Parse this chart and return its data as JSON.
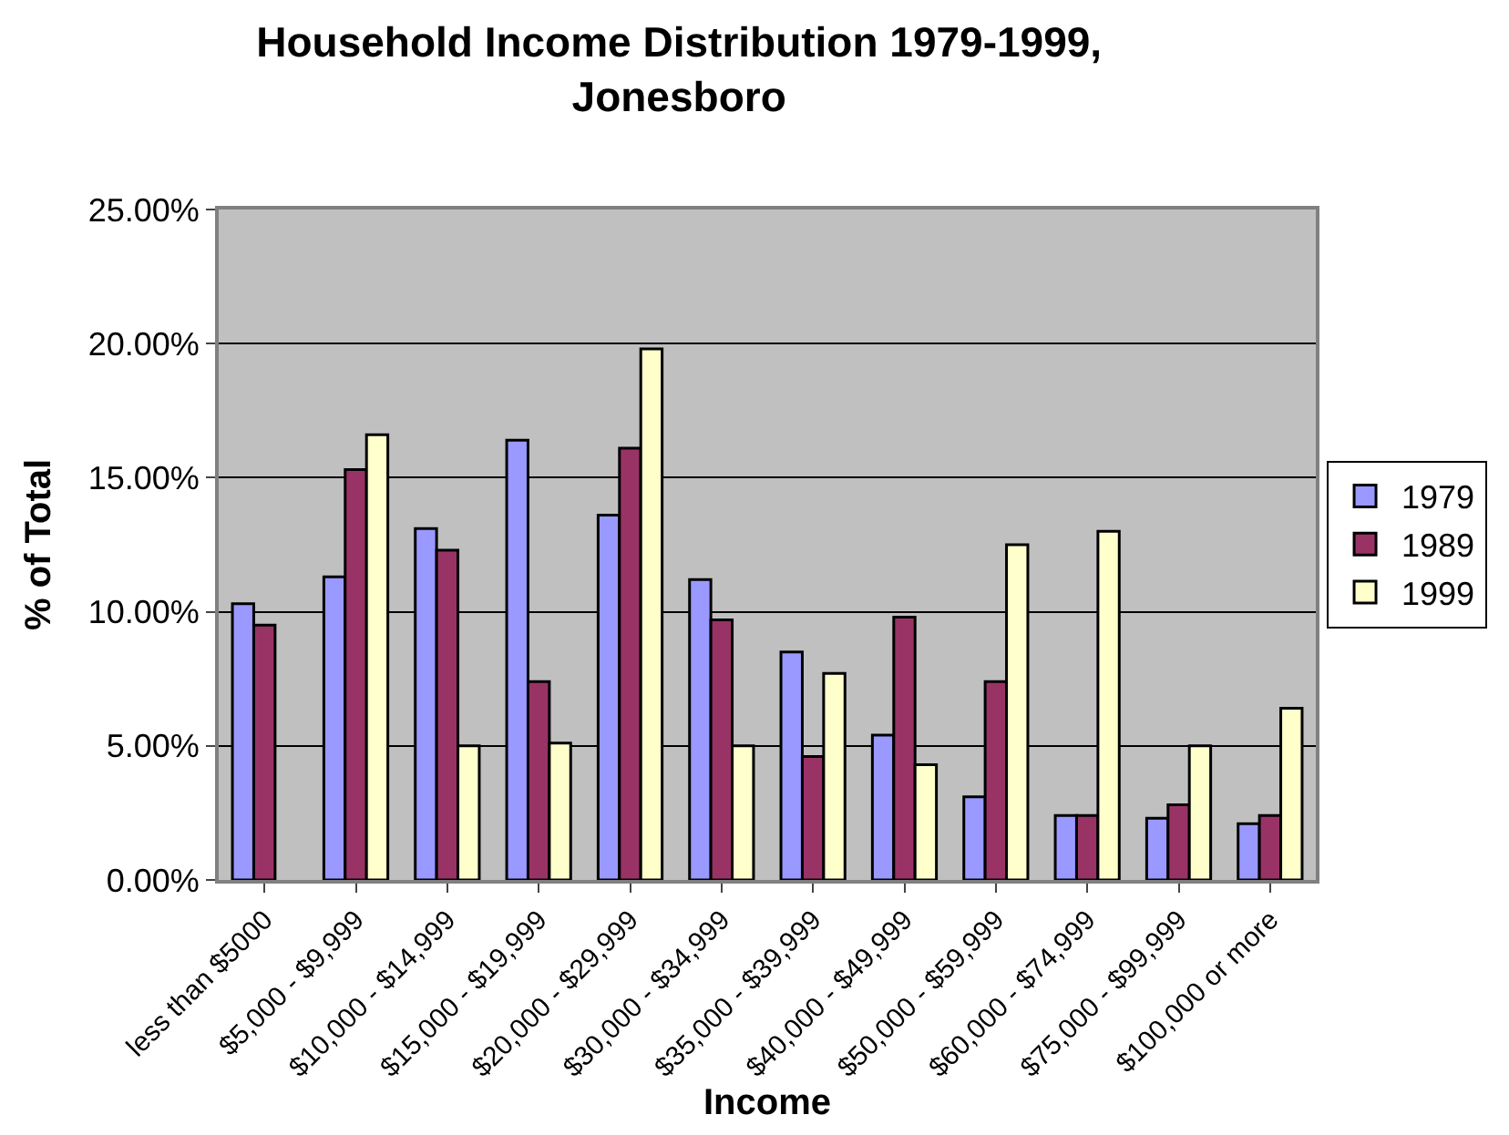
{
  "chart_data": {
    "type": "bar",
    "title": "Household Income Distribution 1979-1999, Jonesboro",
    "xlabel": "Income",
    "ylabel": "% of Total",
    "categories": [
      "less than $5000",
      "$5,000 - $9,999",
      "$10,000 - $14,999",
      "$15,000 - $19,999",
      "$20,000 - $29,999",
      "$30,000 - $34,999",
      "$35,000 - $39,999",
      "$40,000 - $49,999",
      "$50,000 - $59,999",
      "$60,000 - $74,999",
      "$75,000 - $99,999",
      "$100,000 or more"
    ],
    "series": [
      {
        "name": "1979",
        "color": "#9999ff",
        "values": [
          10.3,
          11.3,
          13.1,
          16.4,
          13.6,
          11.2,
          8.5,
          5.4,
          3.1,
          2.4,
          2.3,
          2.1
        ]
      },
      {
        "name": "1989",
        "color": "#993366",
        "values": [
          9.5,
          15.3,
          12.3,
          7.4,
          16.1,
          9.7,
          4.6,
          9.8,
          7.4,
          2.4,
          2.8,
          2.4
        ]
      },
      {
        "name": "1999",
        "color": "#ffffcc",
        "values": [
          null,
          16.6,
          5.0,
          5.1,
          19.8,
          5.0,
          7.7,
          4.3,
          12.5,
          13.0,
          5.0,
          6.4
        ]
      }
    ],
    "ylim": [
      0,
      25
    ],
    "yticks": [
      {
        "value": 0,
        "label": "0.00%"
      },
      {
        "value": 5,
        "label": "5.00%"
      },
      {
        "value": 10,
        "label": "10.00%"
      },
      {
        "value": 15,
        "label": "15.00%"
      },
      {
        "value": 20,
        "label": "20.00%"
      },
      {
        "value": 25,
        "label": "25.00%"
      }
    ],
    "grid": "y",
    "legend": "right"
  }
}
